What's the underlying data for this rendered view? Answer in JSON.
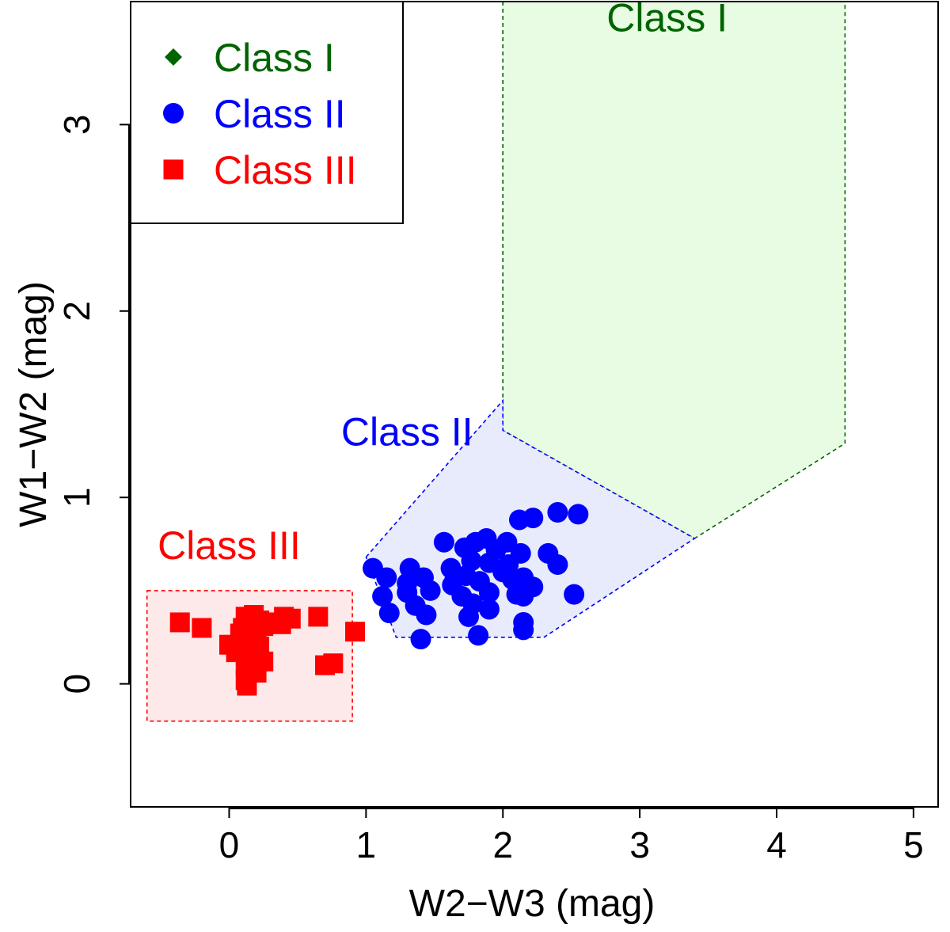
{
  "chart_data": {
    "type": "scatter",
    "xlabel": "W2−W3 (mag)",
    "ylabel": "W1−W2 (mag)",
    "xlim": [
      -0.72,
      5.18
    ],
    "ylim": [
      -0.66,
      3.66
    ],
    "xticks": [
      "0",
      "1",
      "2",
      "3",
      "4",
      "5"
    ],
    "yticks": [
      "0",
      "1",
      "2",
      "3"
    ],
    "grid": false,
    "legend_placement": "top-left",
    "colors": {
      "class1": "#006400",
      "class2": "#0000ff",
      "class3": "#ff0000",
      "class1_fill": "#e8fce4",
      "class2_fill": "#e8ebfb",
      "class3_fill": "#fde9e9"
    },
    "legend": [
      {
        "label": "Class I",
        "marker": "diamond",
        "color_key": "class1"
      },
      {
        "label": "Class II",
        "marker": "circle",
        "color_key": "class2"
      },
      {
        "label": "Class III",
        "marker": "square",
        "color_key": "class3"
      }
    ],
    "regions": [
      {
        "label": "Class I",
        "color_key": "class1",
        "fill_key": "class1_fill",
        "label_pos": [
          3.2,
          3.5
        ],
        "vertices": [
          [
            2.0,
            3.66
          ],
          [
            2.0,
            1.36
          ],
          [
            3.4,
            0.78
          ],
          [
            4.5,
            1.29
          ],
          [
            4.5,
            3.66
          ]
        ]
      },
      {
        "label": "Class II",
        "color_key": "class2",
        "fill_key": "class2_fill",
        "label_pos": [
          1.3,
          1.28
        ],
        "vertices": [
          [
            1.0,
            0.68
          ],
          [
            2.0,
            1.52
          ],
          [
            2.0,
            1.36
          ],
          [
            3.4,
            0.78
          ],
          [
            2.3,
            0.25
          ],
          [
            1.22,
            0.25
          ]
        ]
      },
      {
        "label": "Class III",
        "color_key": "class3",
        "fill_key": "class3_fill",
        "label_pos": [
          0.0,
          0.67
        ],
        "vertices": [
          [
            -0.6,
            0.5
          ],
          [
            0.9,
            0.5
          ],
          [
            0.9,
            -0.2
          ],
          [
            -0.6,
            -0.2
          ]
        ]
      }
    ],
    "series": [
      {
        "name": "Class I",
        "marker": "diamond",
        "color_key": "class1",
        "points": []
      },
      {
        "name": "Class II",
        "marker": "circle",
        "color_key": "class2",
        "points": [
          [
            1.05,
            0.62
          ],
          [
            1.15,
            0.57
          ],
          [
            1.12,
            0.47
          ],
          [
            1.17,
            0.38
          ],
          [
            1.3,
            0.54
          ],
          [
            1.32,
            0.62
          ],
          [
            1.3,
            0.49
          ],
          [
            1.36,
            0.42
          ],
          [
            1.42,
            0.57
          ],
          [
            1.44,
            0.37
          ],
          [
            1.47,
            0.5
          ],
          [
            1.4,
            0.24
          ],
          [
            1.57,
            0.76
          ],
          [
            1.62,
            0.62
          ],
          [
            1.63,
            0.53
          ],
          [
            1.65,
            0.57
          ],
          [
            1.7,
            0.47
          ],
          [
            1.72,
            0.73
          ],
          [
            1.75,
            0.36
          ],
          [
            1.78,
            0.43
          ],
          [
            1.73,
            0.58
          ],
          [
            1.8,
            0.76
          ],
          [
            1.83,
            0.55
          ],
          [
            1.77,
            0.66
          ],
          [
            1.88,
            0.78
          ],
          [
            1.9,
            0.49
          ],
          [
            1.9,
            0.4
          ],
          [
            1.82,
            0.26
          ],
          [
            1.95,
            0.72
          ],
          [
            2.03,
            0.76
          ],
          [
            2.04,
            0.64
          ],
          [
            2.07,
            0.56
          ],
          [
            2.1,
            0.48
          ],
          [
            2.12,
            0.88
          ],
          [
            2.13,
            0.7
          ],
          [
            2.15,
            0.57
          ],
          [
            2.15,
            0.47
          ],
          [
            2.22,
            0.89
          ],
          [
            2.22,
            0.52
          ],
          [
            2.15,
            0.33
          ],
          [
            2.15,
            0.29
          ],
          [
            2.33,
            0.7
          ],
          [
            2.4,
            0.92
          ],
          [
            2.4,
            0.64
          ],
          [
            2.55,
            0.91
          ],
          [
            2.52,
            0.48
          ],
          [
            2.0,
            0.6
          ],
          [
            1.9,
            0.65
          ]
        ]
      },
      {
        "name": "Class III",
        "marker": "square",
        "color_key": "class3",
        "points": [
          [
            -0.36,
            0.33
          ],
          [
            -0.2,
            0.3
          ],
          [
            0.0,
            0.21
          ],
          [
            0.05,
            0.17
          ],
          [
            0.08,
            0.27
          ],
          [
            0.1,
            0.3
          ],
          [
            0.12,
            0.36
          ],
          [
            0.12,
            0.1
          ],
          [
            0.12,
            0.02
          ],
          [
            0.15,
            0.14
          ],
          [
            0.15,
            0.22
          ],
          [
            0.18,
            0.37
          ],
          [
            0.2,
            0.26
          ],
          [
            0.22,
            0.34
          ],
          [
            0.22,
            0.2
          ],
          [
            0.2,
            0.06
          ],
          [
            0.25,
            0.31
          ],
          [
            0.3,
            0.33
          ],
          [
            0.38,
            0.32
          ],
          [
            0.4,
            0.36
          ],
          [
            0.45,
            0.35
          ],
          [
            0.65,
            0.36
          ],
          [
            0.7,
            0.1
          ],
          [
            0.76,
            0.11
          ],
          [
            0.92,
            0.28
          ],
          [
            0.18,
            0.13
          ],
          [
            0.13,
            -0.01
          ],
          [
            0.25,
            0.12
          ]
        ]
      }
    ]
  }
}
